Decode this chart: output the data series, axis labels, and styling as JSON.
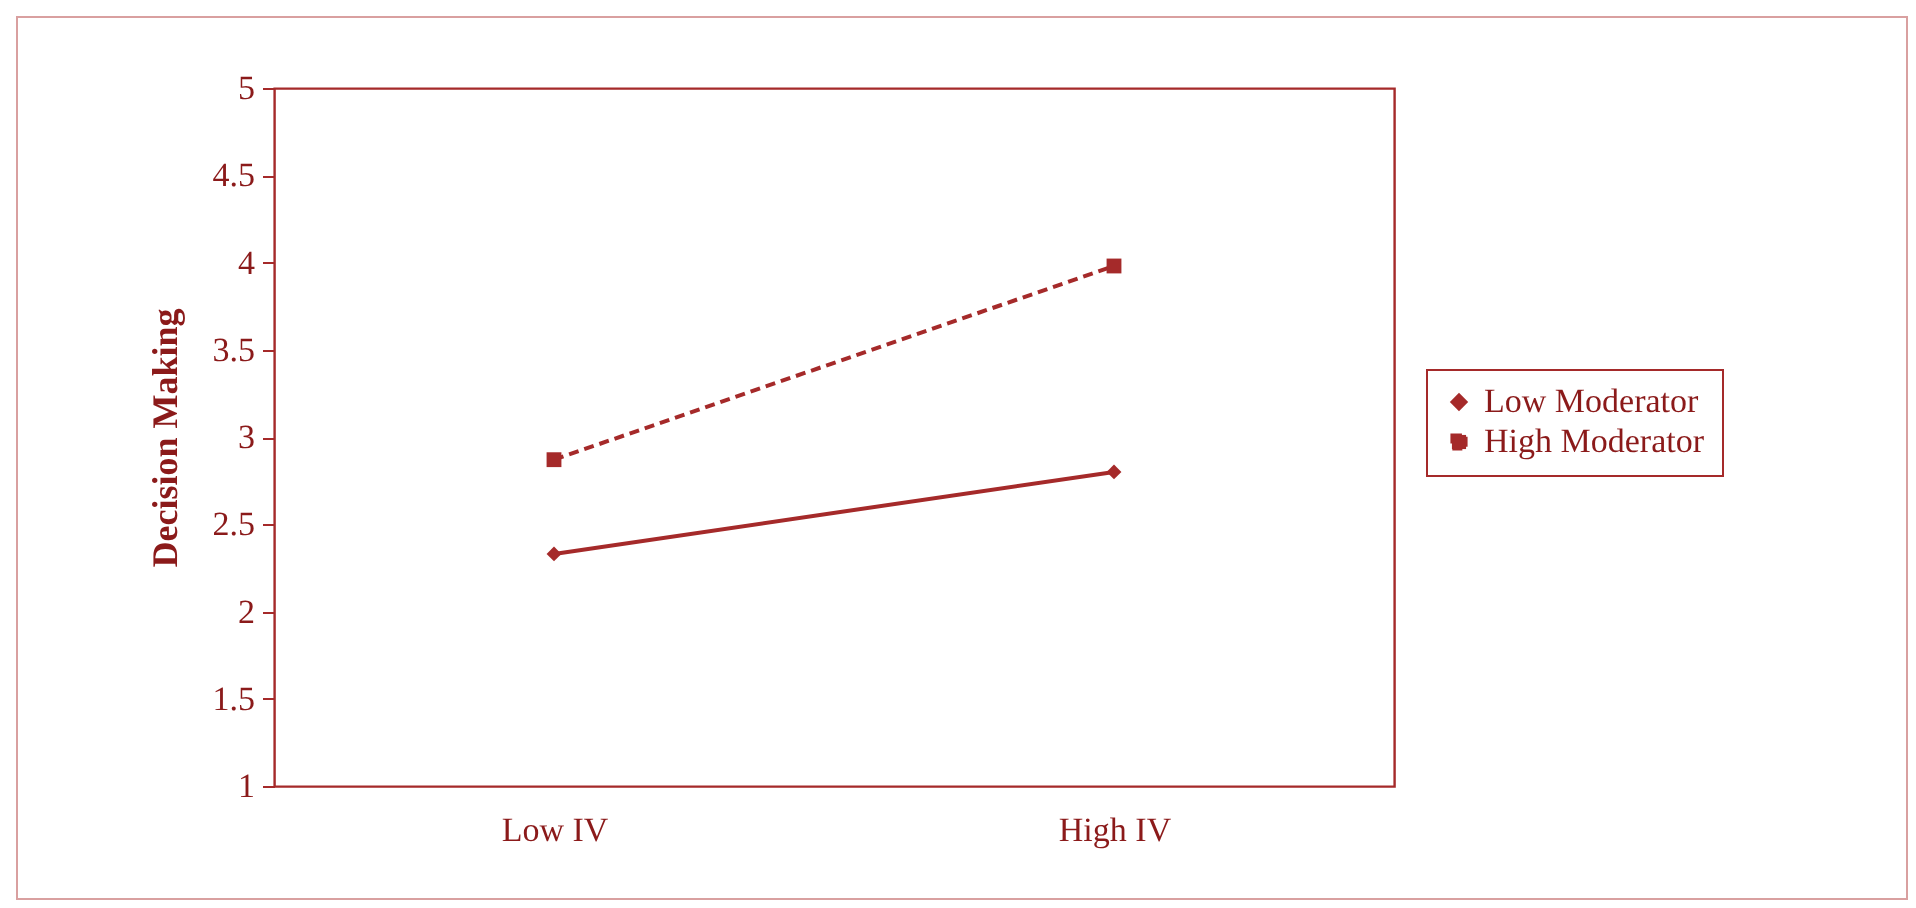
{
  "chart_data": {
    "type": "line",
    "ylabel": "Decision Making",
    "categories": [
      "Low IV",
      "High IV"
    ],
    "series": [
      {
        "name": "Low Moderator",
        "color": "#a52a2a",
        "values": [
          2.33,
          2.8
        ],
        "marker": "diamond",
        "line_style": "solid"
      },
      {
        "name": "High Moderator",
        "color": "#a52a2a",
        "values": [
          2.87,
          3.98
        ],
        "marker": "square",
        "line_style": "dashed"
      }
    ],
    "ylim": [
      1,
      5
    ],
    "yticks": [
      1,
      1.5,
      2,
      2.5,
      3,
      3.5,
      4,
      4.5,
      5
    ],
    "grid": false,
    "legend": "right"
  }
}
